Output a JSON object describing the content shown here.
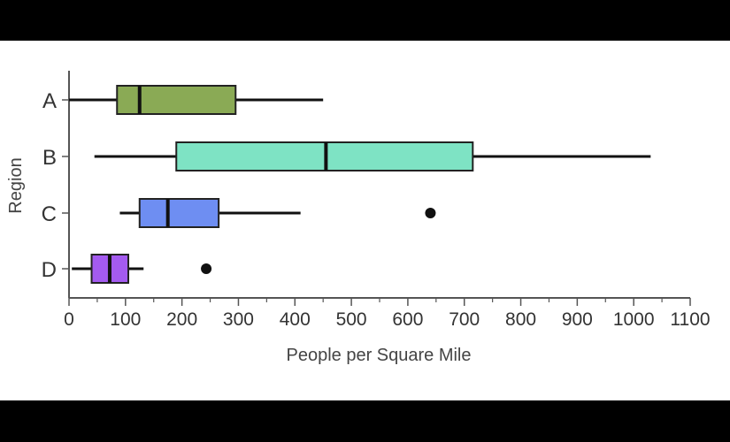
{
  "chart_data": {
    "type": "boxplot",
    "orientation": "horizontal",
    "xlabel": "People per Square Mile",
    "ylabel": "Region",
    "xlim": [
      0,
      1100
    ],
    "xticks": [
      0,
      100,
      200,
      300,
      400,
      500,
      600,
      700,
      800,
      900,
      1000,
      1100
    ],
    "grid": false,
    "categories": [
      "A",
      "B",
      "C",
      "D"
    ],
    "boxes": [
      {
        "category": "A",
        "min": 0,
        "q1": 85,
        "median": 125,
        "q3": 295,
        "max": 450,
        "outliers": [],
        "color": "#8aaa55"
      },
      {
        "category": "B",
        "min": 45,
        "q1": 190,
        "median": 455,
        "q3": 715,
        "max": 1030,
        "outliers": [],
        "color": "#7ee3c4"
      },
      {
        "category": "C",
        "min": 90,
        "q1": 125,
        "median": 175,
        "q3": 265,
        "max": 410,
        "outliers": [
          640
        ],
        "color": "#6e8ef2"
      },
      {
        "category": "D",
        "min": 5,
        "q1": 40,
        "median": 72,
        "q3": 105,
        "max": 132,
        "outliers": [
          243
        ],
        "color": "#a45bf0"
      }
    ]
  }
}
